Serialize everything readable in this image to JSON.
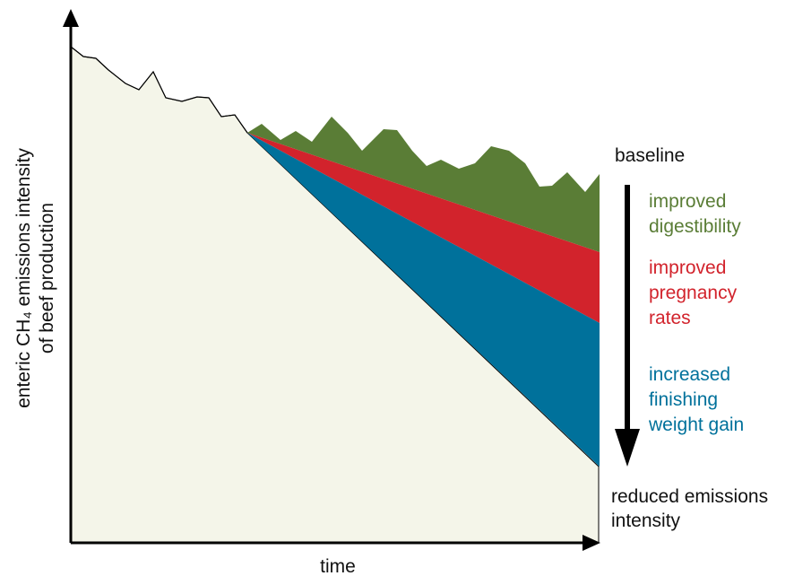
{
  "axes": {
    "x_label": "time",
    "y_label_line1": "enteric CH₄ emissions intensity",
    "y_label_line2": "of beef production"
  },
  "labels": {
    "baseline": "baseline",
    "digestibility_line1": "improved",
    "digestibility_line2": "digestibility",
    "pregnancy_line1": "improved",
    "pregnancy_line2": "pregnancy",
    "pregnancy_line3": "rates",
    "finishing_line1": "increased",
    "finishing_line2": "finishing",
    "finishing_line3": "weight gain",
    "reduced_line1": "reduced emissions",
    "reduced_line2": "intensity"
  },
  "colors": {
    "background_area": "#f4f5e9",
    "digestibility": "#5a7d36",
    "pregnancy": "#d2232c",
    "finishing": "#00719b",
    "axis": "#000000"
  }
}
